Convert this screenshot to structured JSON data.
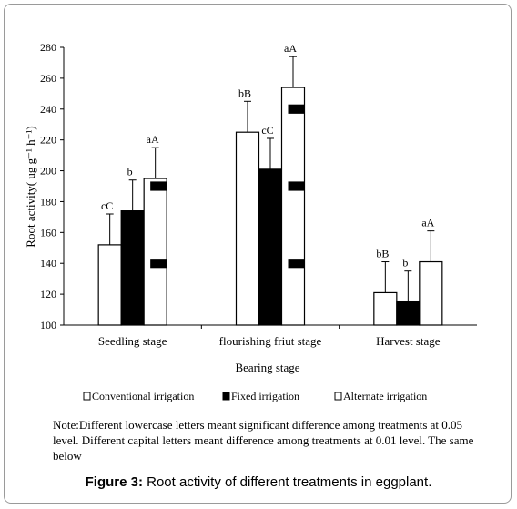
{
  "chart_data": {
    "type": "bar",
    "categories": [
      "Seedling stage",
      "flourishing friut stage",
      "Harvest stage"
    ],
    "xlabel": "Bearing stage",
    "ylabel": "Root activity( ug g⁻¹ h⁻¹)",
    "ylim": [
      100,
      280
    ],
    "yticks": [
      100,
      120,
      140,
      160,
      180,
      200,
      220,
      240,
      260,
      280
    ],
    "grid": false,
    "legend_position": "bottom",
    "series": [
      {
        "name": "Conventional irrigation",
        "values": [
          152,
          225,
          121
        ],
        "errors": [
          20,
          20,
          20
        ],
        "labels": [
          "cC",
          "bB",
          "bB"
        ],
        "style": "white"
      },
      {
        "name": "Fixed irrigation",
        "values": [
          174,
          201,
          115
        ],
        "errors": [
          20,
          20,
          20
        ],
        "labels": [
          "b",
          "cC",
          "b"
        ],
        "style": "black"
      },
      {
        "name": "Alternate irrigation",
        "values": [
          195,
          254,
          141
        ],
        "errors": [
          20,
          20,
          20
        ],
        "labels": [
          "aA",
          "aA",
          "aA"
        ],
        "style": "alternate"
      }
    ]
  },
  "note": "Note:Different lowercase letters  meant significant difference among treatments at 0.05 level. Different capital letters  meant difference among treatments at 0.01 level. The same below",
  "caption": {
    "label": "Figure 3:",
    "text": " Root activity of different treatments in eggplant."
  }
}
